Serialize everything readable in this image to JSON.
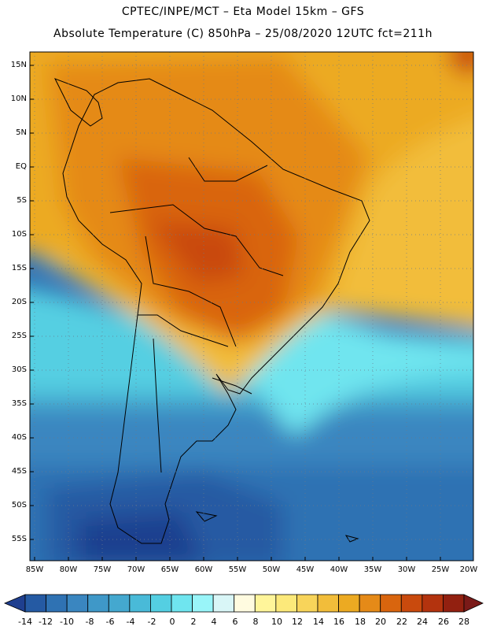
{
  "title_line1": "CPTEC/INPE/MCT –  Eta Model 15km – GFS",
  "title_line2": "Absolute Temperature (C) 850hPa – 25/08/2020 12UTC fct=211h",
  "lat_labels": [
    "15N",
    "10N",
    "5N",
    "EQ",
    "5S",
    "10S",
    "15S",
    "20S",
    "25S",
    "30S",
    "35S",
    "40S",
    "45S",
    "50S",
    "55S"
  ],
  "lon_labels": [
    "85W",
    "80W",
    "75W",
    "70W",
    "65W",
    "60W",
    "55W",
    "50W",
    "45W",
    "40W",
    "35W",
    "30W",
    "25W",
    "20W"
  ],
  "colorbar_labels": [
    "-14",
    "-12",
    "-10",
    "-8",
    "-6",
    "-4",
    "-2",
    "0",
    "2",
    "4",
    "6",
    "8",
    "10",
    "12",
    "14",
    "16",
    "18",
    "20",
    "22",
    "24",
    "26",
    "28"
  ],
  "colorbar_colors": [
    "#1f3f8f",
    "#255aa3",
    "#2f72b3",
    "#3a86c0",
    "#3f98c8",
    "#44a8cf",
    "#49bad8",
    "#54cfe2",
    "#6fe5ef",
    "#99f5f9",
    "#d9f6f7",
    "#fffbe0",
    "#fff59a",
    "#fce97a",
    "#f8d45a",
    "#f2bd3a",
    "#ecaa22",
    "#e58a18",
    "#d9650e",
    "#c94a0d",
    "#b3330e",
    "#922010",
    "#7a1a18"
  ],
  "colors": {
    "ocean_cold": "#3a86c0",
    "ocean_mid": "#54cfe2",
    "ocean_cool": "#99f5f9",
    "warm_ocean": "#ecaa22",
    "tropics": "#f2bd3a",
    "hot_land": "#d9650e",
    "very_hot": "#c94a0d"
  }
}
